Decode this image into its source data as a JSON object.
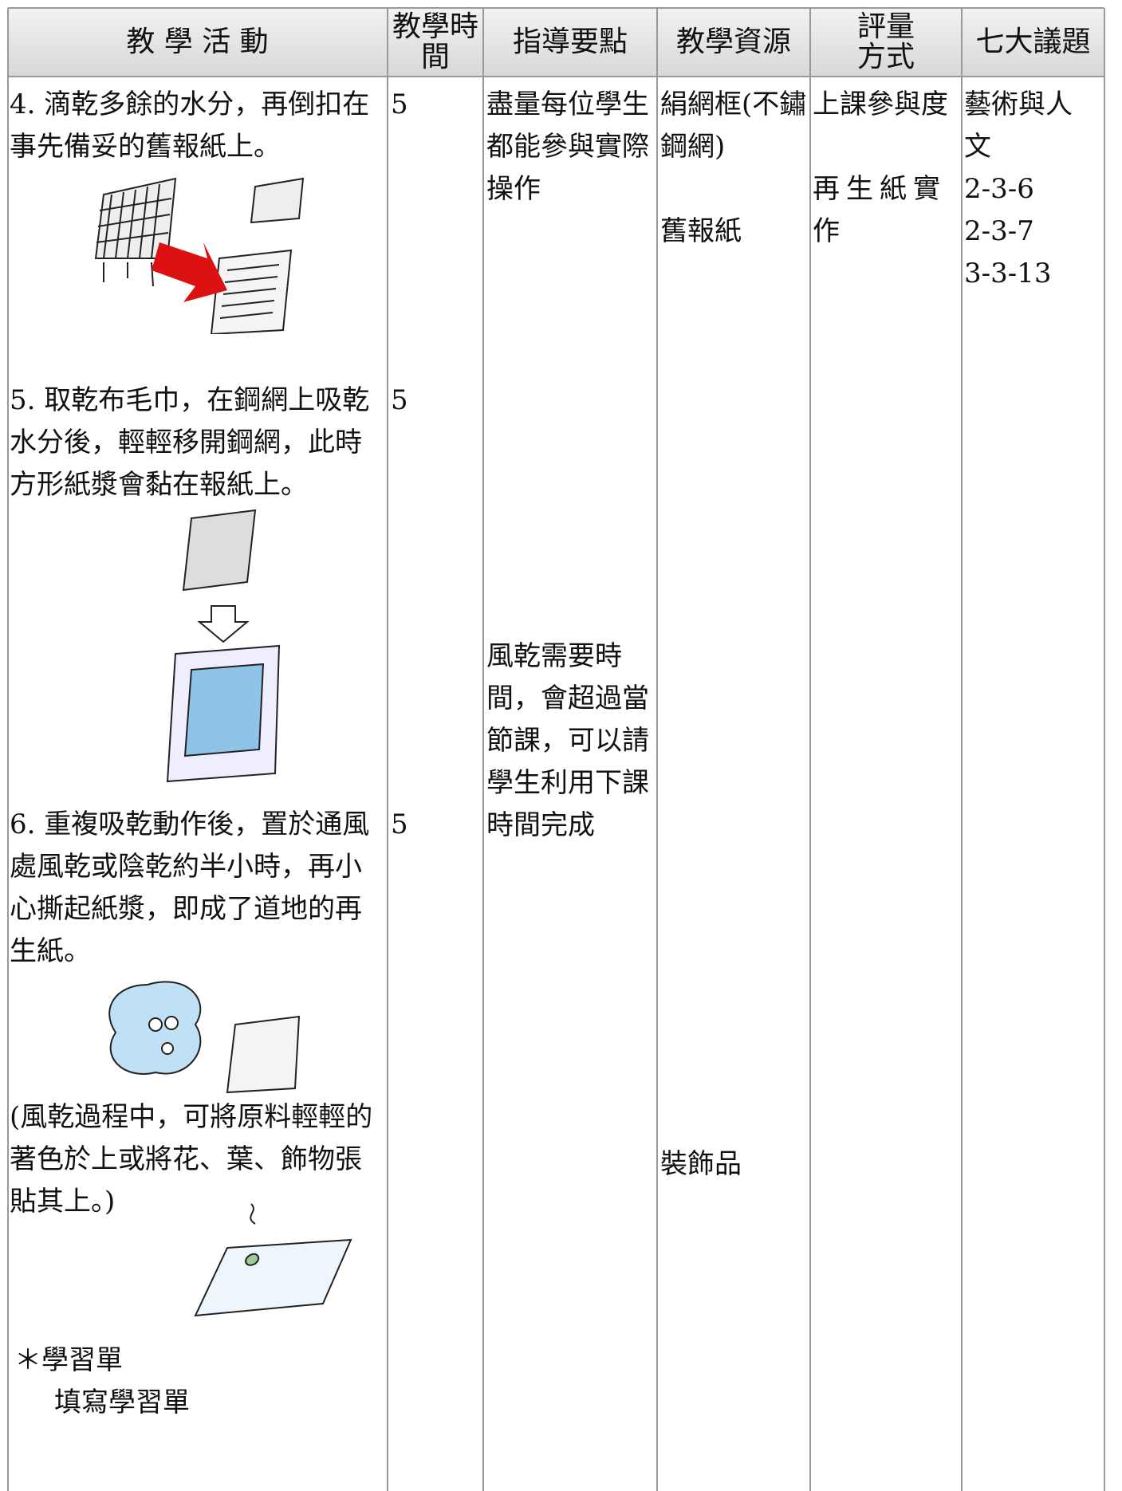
{
  "header": [
    "教 學 活 動",
    "教學時間",
    "指導要點",
    "教學資源",
    "評量方式",
    "七大議題"
  ],
  "activities": [
    {
      "text": "4. 滴乾多餘的水分，再倒扣在事先備妥的舊報紙上。",
      "time": "5"
    },
    {
      "text": "5. 取乾布毛巾，在鋼網上吸乾水分後，輕輕移開鋼網，此時方形紙漿會黏在報紙上。",
      "time": "5"
    },
    {
      "text": "6. 重複吸乾動作後，置於通風處風乾或陰乾約半小時，再小心撕起紙漿，即成了道地的再生紙。",
      "time": "5"
    }
  ],
  "note": "(風乾過程中，可將原料輕輕的著色於上或將花、葉、飾物張貼其上。)",
  "worksheet": {
    "title": "＊學習單",
    "item": "填寫學習單"
  },
  "guidance": [
    "盡量每位學生都能參與實際操作",
    "風乾需要時間，會超過當節課，可以請學生利用下課時間完成"
  ],
  "resources": [
    "絹網框(不鏽鋼網)",
    "舊報紙",
    "裝飾品"
  ],
  "evaluation": [
    "上課參與度",
    "再生紙實作"
  ],
  "issues": [
    "藝術與人文",
    "2-3-6",
    "2-3-7",
    "3-3-13"
  ]
}
